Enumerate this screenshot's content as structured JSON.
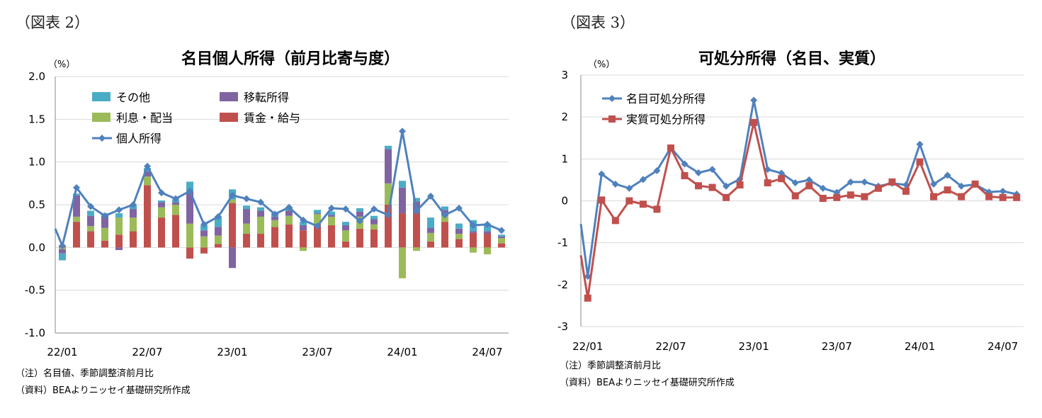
{
  "left": {
    "figure_label": "（図表 2）",
    "note1": "（注）名目値、季節調整済前月比",
    "note2": "（資料）BEAよりニッセイ基礎研究所作成"
  },
  "right": {
    "figure_label": "（図表 3）",
    "note1": "（注）季節調整済前月比",
    "note2": "（資料）BEAよりニッセイ基礎研究所作成"
  },
  "colors": {
    "other": "#4bacc6",
    "transfer": "#8064a2",
    "interest": "#9bbb59",
    "wages": "#c0504d",
    "personal_income_line": "#4f81bd",
    "real_line": "#c0504d",
    "grid": "#d9d9d9"
  },
  "chart_data": [
    {
      "type": "bar",
      "stacked": true,
      "title": "名目個人所得（前月比寄与度）",
      "unit_label": "（%）",
      "ylim": [
        -1.0,
        2.0
      ],
      "yticks": [
        "2.0",
        "1.5",
        "1.0",
        "0.5",
        "0.0",
        "-0.5",
        "-1.0"
      ],
      "grid": true,
      "legend_position": "top-left",
      "categories": [
        "22/01",
        "22/02",
        "22/03",
        "22/04",
        "22/05",
        "22/06",
        "22/07",
        "22/08",
        "22/09",
        "22/10",
        "22/11",
        "22/12",
        "23/01",
        "23/02",
        "23/03",
        "23/04",
        "23/05",
        "23/06",
        "23/07",
        "23/08",
        "23/09",
        "23/10",
        "23/11",
        "23/12",
        "24/01",
        "24/02",
        "24/03",
        "24/04",
        "24/05",
        "24/06",
        "24/07",
        "24/08"
      ],
      "xtick_labels": [
        "22/01",
        "22/07",
        "23/01",
        "23/07",
        "24/01",
        "24/07"
      ],
      "xtick_indices": [
        0,
        6,
        12,
        18,
        24,
        30
      ],
      "series": [
        {
          "name": "賃金・給与",
          "key": "wages",
          "values": [
            0.02,
            0.3,
            0.19,
            0.08,
            0.15,
            0.19,
            0.73,
            0.35,
            0.38,
            -0.13,
            -0.07,
            0.04,
            0.52,
            0.16,
            0.16,
            0.24,
            0.27,
            0.2,
            0.27,
            0.26,
            0.07,
            0.22,
            0.21,
            0.5,
            0.4,
            0.4,
            0.07,
            0.3,
            0.1,
            0.17,
            0.16,
            0.05
          ]
        },
        {
          "name": "利息・配当",
          "key": "interest",
          "values": [
            -0.02,
            0.06,
            0.06,
            0.15,
            0.2,
            0.16,
            0.1,
            0.12,
            0.12,
            0.28,
            0.13,
            0.1,
            0.04,
            0.12,
            0.2,
            0.08,
            0.1,
            -0.04,
            0.12,
            0.1,
            0.13,
            0.14,
            0.06,
            0.25,
            -0.36,
            -0.04,
            0.1,
            0.08,
            0.06,
            -0.06,
            -0.08,
            0.06
          ]
        },
        {
          "name": "移転所得",
          "key": "transfer",
          "values": [
            -0.05,
            0.25,
            0.12,
            0.14,
            -0.03,
            0.1,
            0.06,
            0.06,
            0.03,
            0.37,
            0.07,
            0.1,
            -0.24,
            0.17,
            0.07,
            0.04,
            0.06,
            0.06,
            0.01,
            0.02,
            0.06,
            0.06,
            0.06,
            0.4,
            0.3,
            0.14,
            0.06,
            0.06,
            0.06,
            0.02,
            0.03,
            0.02
          ]
        },
        {
          "name": "その他",
          "key": "other",
          "values": [
            -0.08,
            0.02,
            0.06,
            0.03,
            0.05,
            0.05,
            0.04,
            0.02,
            0.03,
            0.12,
            0.06,
            0.12,
            0.12,
            0.04,
            0.04,
            0.04,
            0.04,
            0.04,
            0.04,
            0.04,
            0.04,
            0.04,
            0.04,
            0.04,
            0.08,
            0.04,
            0.12,
            0.04,
            0.06,
            0.13,
            0.09,
            0.02
          ]
        },
        {
          "name": "個人所得",
          "key": "personal_income_line",
          "line": true,
          "values": [
            0.02,
            0.7,
            0.48,
            0.37,
            0.44,
            0.5,
            0.95,
            0.64,
            0.57,
            0.66,
            0.27,
            0.36,
            0.61,
            0.57,
            0.53,
            0.39,
            0.47,
            0.32,
            0.25,
            0.46,
            0.45,
            0.31,
            0.45,
            0.38,
            1.36,
            0.43,
            0.6,
            0.38,
            0.46,
            0.26,
            0.27,
            0.2
          ]
        }
      ]
    },
    {
      "type": "line",
      "title": "可処分所得（名目、実質）",
      "unit_label": "（%）",
      "ylim": [
        -3,
        3
      ],
      "yticks": [
        "3",
        "2",
        "1",
        "0",
        "-1",
        "-2",
        "-3"
      ],
      "grid": true,
      "legend_position": "top-left",
      "categories": [
        "22/01",
        "22/02",
        "22/03",
        "22/04",
        "22/05",
        "22/06",
        "22/07",
        "22/08",
        "22/09",
        "22/10",
        "22/11",
        "22/12",
        "23/01",
        "23/02",
        "23/03",
        "23/04",
        "23/05",
        "23/06",
        "23/07",
        "23/08",
        "23/09",
        "23/10",
        "23/11",
        "23/12",
        "24/01",
        "24/02",
        "24/03",
        "24/04",
        "24/05",
        "24/06",
        "24/07",
        "24/08"
      ],
      "xtick_labels": [
        "22/01",
        "22/07",
        "23/01",
        "23/07",
        "24/01",
        "24/07"
      ],
      "xtick_indices": [
        0,
        6,
        12,
        18,
        24,
        30
      ],
      "series": [
        {
          "name": "名目可処分所得",
          "key": "personal_income_line",
          "marker": "diamond",
          "values": [
            -1.8,
            0.64,
            0.4,
            0.3,
            0.51,
            0.72,
            1.27,
            0.88,
            0.67,
            0.75,
            0.35,
            0.52,
            2.4,
            0.75,
            0.66,
            0.43,
            0.5,
            0.3,
            0.2,
            0.45,
            0.45,
            0.35,
            0.42,
            0.38,
            1.35,
            0.4,
            0.61,
            0.35,
            0.39,
            0.21,
            0.23,
            0.16
          ]
        },
        {
          "name": "実質可処分所得",
          "key": "real_line",
          "marker": "square",
          "values": [
            -2.32,
            0.02,
            -0.47,
            0.0,
            -0.08,
            -0.2,
            1.26,
            0.6,
            0.36,
            0.32,
            0.08,
            0.38,
            1.87,
            0.43,
            0.53,
            0.12,
            0.36,
            0.06,
            0.08,
            0.14,
            0.1,
            0.3,
            0.45,
            0.23,
            0.93,
            0.1,
            0.26,
            0.1,
            0.4,
            0.1,
            0.08,
            0.08
          ]
        }
      ]
    }
  ]
}
